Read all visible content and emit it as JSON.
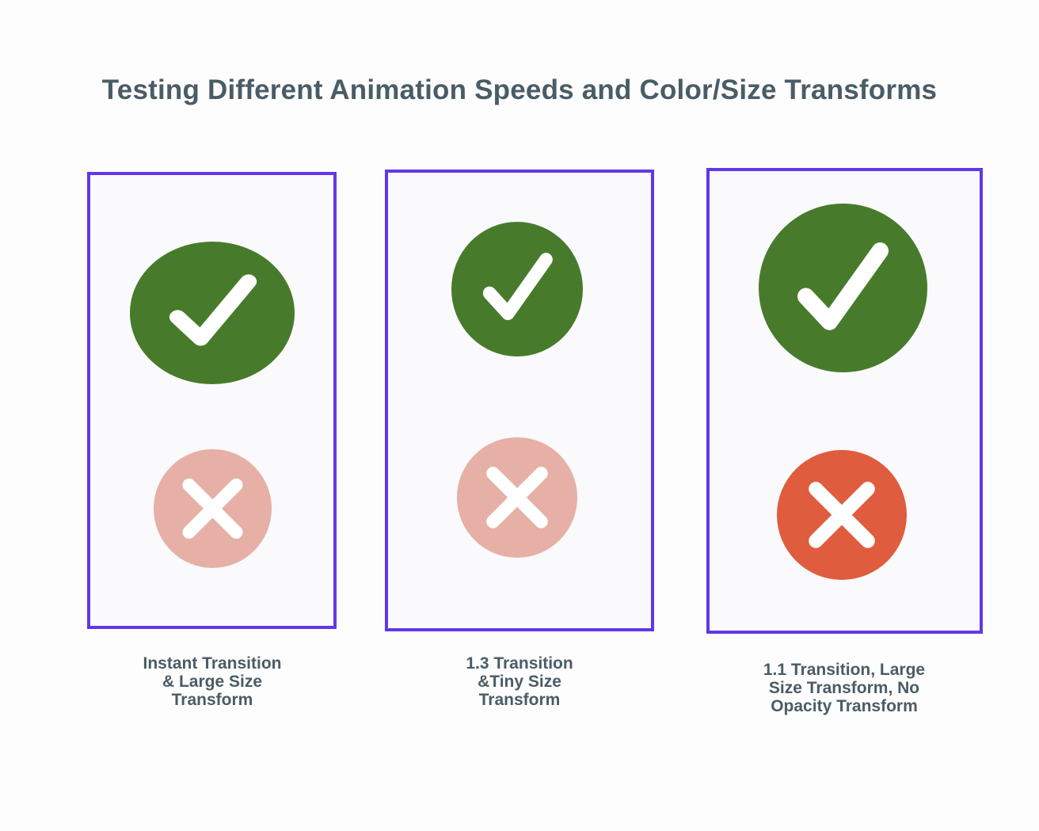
{
  "title": "Testing Different Animation Speeds and Color/Size Transforms",
  "colors": {
    "panel_border": "#6138e8",
    "check": "#477b2b",
    "cross_faded": "#e6b0a7",
    "cross_solid": "#e05c3f",
    "text": "#4a5c66"
  },
  "panels": [
    {
      "caption": "Instant Transition\n& Large Size\nTransform",
      "icons": [
        "check-circle-icon",
        "cross-circle-icon"
      ]
    },
    {
      "caption": "1.3 Transition\n&Tiny Size\nTransform",
      "icons": [
        "check-circle-icon",
        "cross-circle-icon"
      ]
    },
    {
      "caption": "1.1 Transition, Large\nSize Transform, No\nOpacity Transform",
      "icons": [
        "check-circle-icon",
        "cross-circle-icon"
      ]
    }
  ]
}
